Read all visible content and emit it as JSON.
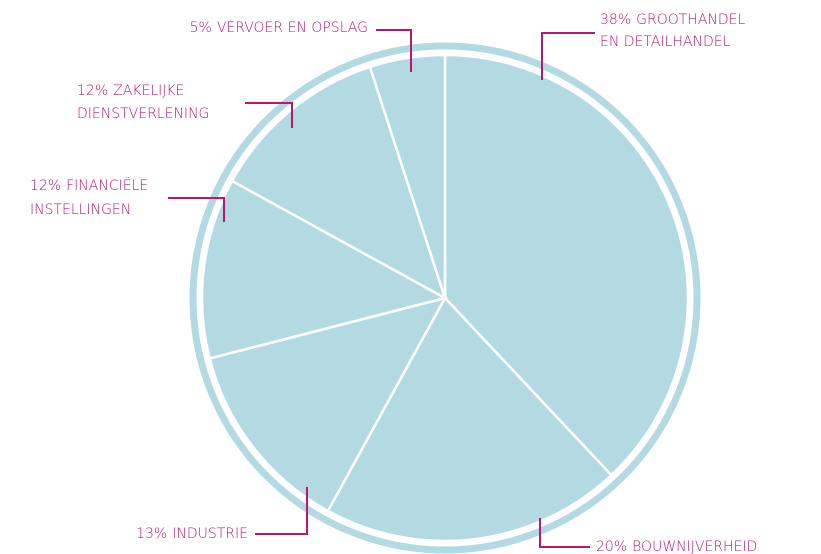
{
  "chart_data": {
    "type": "pie",
    "categories": [
      [
        "GROOTHANDEL",
        "EN DETAILHANDEL"
      ],
      [
        "BOUWNIJVERHEID"
      ],
      [
        "INDUSTRIE"
      ],
      [
        "FINANCIËLE",
        "INSTELLINGEN"
      ],
      [
        "ZAKELIJKE",
        "DIENSTVERLENING"
      ],
      [
        "VERVOER EN OPSLAG"
      ]
    ],
    "values": [
      38,
      20,
      13,
      12,
      12,
      5
    ],
    "value_labels": [
      "38%",
      "20%",
      "13%",
      "12%",
      "12%",
      "5%"
    ],
    "color": "#b3dae3",
    "label_color": "#b8196f"
  }
}
